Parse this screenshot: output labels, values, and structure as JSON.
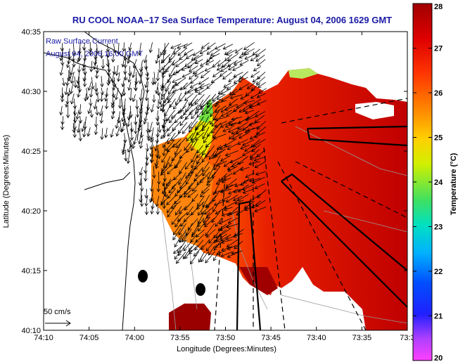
{
  "title": "RU COOL  NOAA–17  Sea Surface Temperature:  August 04, 2006 1629 GMT",
  "legend": {
    "line1": "Raw Surface Current",
    "line2": "August 04, 2006 16:00 GMT"
  },
  "scale_vector_label": "50 cm/s",
  "x_axis": {
    "label": "Longitude (Degrees:Minutes)",
    "ticks": [
      "74:10",
      "74:05",
      "74:00",
      "73:55",
      "73:50",
      "73:45",
      "73:40",
      "73:35",
      "73:3"
    ]
  },
  "y_axis": {
    "label": "Latitude (Degrees:Minutes)",
    "ticks": [
      "40:35",
      "40:30",
      "40:25",
      "40:20",
      "40:15",
      "40:10"
    ]
  },
  "colorbar": {
    "label": "Temperature (°C)",
    "ticks": [
      "28",
      "27",
      "26",
      "25",
      "24",
      "23",
      "22",
      "21",
      "20"
    ],
    "min": 20,
    "max": 28
  },
  "colors": {
    "title": "#1a1aa6",
    "sst_warm": "#b00000",
    "sst_mid": "#ff6a00",
    "sst_cool": "#e6e600"
  }
}
